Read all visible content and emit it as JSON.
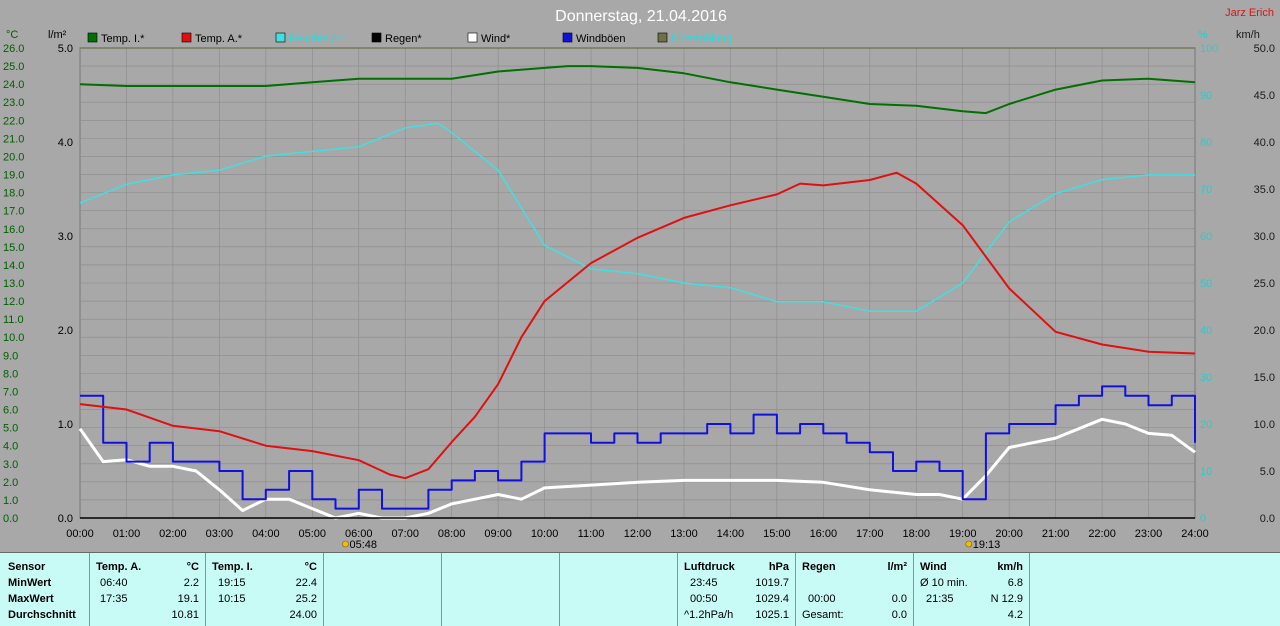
{
  "title": "Donnerstag, 21.04.2016",
  "author": "Jarz Erich",
  "colors": {
    "bg": "#a8a8a8",
    "grid": "#8a8a8a",
    "temp_in": "#007000",
    "temp_out": "#e01010",
    "humidity": "#40e0e0",
    "rain": "#000000",
    "wind": "#ffffff",
    "gusts": "#1010e0",
    "sunshine": "#707048"
  },
  "axes": {
    "celsius_unit": "°C",
    "rain_unit": "l/m²",
    "humidity_unit": "%",
    "wind_unit": "km/h",
    "celsius_ticks": [
      "0.0",
      "1.0",
      "2.0",
      "3.0",
      "4.0",
      "5.0",
      "6.0",
      "7.0",
      "8.0",
      "9.0",
      "10.0",
      "11.0",
      "12.0",
      "13.0",
      "14.0",
      "15.0",
      "16.0",
      "17.0",
      "18.0",
      "19.0",
      "20.0",
      "21.0",
      "22.0",
      "23.0",
      "24.0",
      "25.0",
      "26.0"
    ],
    "rain_ticks": [
      "0.0",
      "1.0",
      "2.0",
      "3.0",
      "4.0",
      "5.0"
    ],
    "humidity_ticks": [
      "0",
      "10",
      "20",
      "30",
      "40",
      "50",
      "60",
      "70",
      "80",
      "90",
      "100"
    ],
    "wind_ticks": [
      "0.0",
      "5.0",
      "10.0",
      "15.0",
      "20.0",
      "25.0",
      "30.0",
      "35.0",
      "40.0",
      "45.0",
      "50.0"
    ],
    "x_ticks": [
      "00:00",
      "01:00",
      "02:00",
      "03:00",
      "04:00",
      "05:00",
      "06:00",
      "07:00",
      "08:00",
      "09:00",
      "10:00",
      "11:00",
      "12:00",
      "13:00",
      "14:00",
      "15:00",
      "16:00",
      "17:00",
      "18:00",
      "19:00",
      "20:00",
      "21:00",
      "22:00",
      "23:00",
      "24:00"
    ],
    "sunrise": "05:48",
    "sunset": "19:13"
  },
  "legend": [
    {
      "label": "Temp. I.*",
      "color": "#007000"
    },
    {
      "label": "Temp. A.*",
      "color": "#e01010"
    },
    {
      "label": "Feuchte A.*",
      "color": "#40e0e0"
    },
    {
      "label": "Regen*",
      "color": "#000000"
    },
    {
      "label": "Wind*",
      "color": "#ffffff"
    },
    {
      "label": "Windböen",
      "color": "#1010e0"
    },
    {
      "label": "Einstrahlung",
      "color": "#707048"
    }
  ],
  "chart_data": {
    "type": "line",
    "title": "Donnerstag, 21.04.2016",
    "xlim": [
      0,
      24
    ],
    "ylim": [
      0,
      26
    ],
    "grid": true,
    "legend_position": "top",
    "series": [
      {
        "name": "Temp. I.*",
        "axis": "celsius",
        "x": [
          0,
          1,
          2,
          3,
          4,
          5,
          6,
          7,
          8,
          9,
          10,
          10.5,
          11,
          12,
          13,
          14,
          15,
          16,
          17,
          18,
          19,
          19.5,
          20,
          21,
          22,
          23,
          24
        ],
        "y": [
          24.0,
          23.9,
          23.9,
          23.9,
          23.9,
          24.1,
          24.3,
          24.3,
          24.3,
          24.7,
          24.9,
          25.0,
          25.0,
          24.9,
          24.6,
          24.1,
          23.7,
          23.3,
          22.9,
          22.8,
          22.5,
          22.4,
          22.9,
          23.7,
          24.2,
          24.3,
          24.1
        ]
      },
      {
        "name": "Temp. A.*",
        "axis": "celsius",
        "x": [
          0,
          1,
          2,
          3,
          4,
          5,
          6,
          6.67,
          7,
          7.5,
          8,
          8.5,
          9,
          9.5,
          10,
          11,
          12,
          13,
          14,
          15,
          15.5,
          16,
          17,
          17.58,
          18,
          19,
          20,
          21,
          22,
          23,
          24
        ],
        "y": [
          6.3,
          6.0,
          5.1,
          4.8,
          4.0,
          3.7,
          3.2,
          2.4,
          2.2,
          2.7,
          4.2,
          5.6,
          7.4,
          10.0,
          12.0,
          14.1,
          15.5,
          16.6,
          17.3,
          17.9,
          18.5,
          18.4,
          18.7,
          19.1,
          18.5,
          16.2,
          12.7,
          10.3,
          9.6,
          9.2,
          9.1
        ]
      },
      {
        "name": "Feuchte A.*",
        "axis": "humidity",
        "x": [
          0,
          1,
          2,
          3,
          4,
          5,
          6,
          7,
          7.7,
          8,
          9,
          10,
          11,
          12,
          13,
          14,
          15,
          16,
          17,
          18,
          19,
          20,
          21,
          22,
          23,
          24
        ],
        "y": [
          67,
          71,
          73,
          74,
          77,
          78,
          79,
          83,
          84,
          82,
          74,
          58,
          53,
          52,
          50,
          49,
          46,
          46,
          44,
          44,
          50,
          63,
          69,
          72,
          73,
          73
        ]
      },
      {
        "name": "Regen*",
        "axis": "rain",
        "x": [
          0,
          24
        ],
        "y": [
          0,
          0
        ]
      },
      {
        "name": "Wind*",
        "axis": "wind",
        "x": [
          0,
          0.5,
          1,
          1.5,
          2,
          2.5,
          3,
          3.5,
          4,
          4.5,
          5,
          5.5,
          6,
          6.5,
          7,
          7.5,
          8,
          8.5,
          9,
          9.5,
          10,
          11,
          12,
          13,
          14,
          15,
          16,
          17,
          18,
          18.5,
          19,
          19.5,
          20,
          21,
          21.5,
          22,
          22.5,
          23,
          23.5,
          24
        ],
        "y": [
          9.5,
          6.0,
          6.2,
          5.5,
          5.5,
          5.0,
          3.0,
          0.8,
          2.0,
          2.0,
          1.0,
          0.0,
          0.5,
          0.0,
          0.0,
          0.5,
          1.5,
          2.0,
          2.5,
          2.0,
          3.2,
          3.5,
          3.8,
          4.0,
          4.0,
          4.0,
          3.8,
          3.0,
          2.5,
          2.5,
          2.0,
          4.5,
          7.5,
          8.5,
          9.5,
          10.5,
          10.0,
          9.0,
          8.8,
          7.0
        ]
      },
      {
        "name": "Windböen",
        "axis": "wind",
        "x": [
          0,
          0.5,
          1,
          1.5,
          2,
          2.5,
          3,
          3.5,
          4,
          4.5,
          5,
          5.5,
          6,
          6.5,
          7,
          7.5,
          8,
          8.5,
          9,
          9.5,
          10,
          10.5,
          11,
          11.5,
          12,
          12.5,
          13,
          13.5,
          14,
          14.5,
          15,
          15.5,
          16,
          16.5,
          17,
          17.5,
          18,
          18.5,
          19,
          19.5,
          20,
          20.5,
          21,
          21.5,
          22,
          22.5,
          23,
          23.5,
          24
        ],
        "y": [
          13.0,
          8.0,
          6.0,
          8.0,
          6.0,
          6.0,
          5.0,
          2.0,
          3.0,
          5.0,
          2.0,
          1.0,
          3.0,
          1.0,
          1.0,
          3.0,
          4.0,
          5.0,
          4.0,
          6.0,
          9.0,
          9.0,
          8.0,
          9.0,
          8.0,
          9.0,
          9.0,
          10.0,
          9.0,
          11.0,
          9.0,
          10.0,
          9.0,
          8.0,
          7.0,
          5.0,
          6.0,
          5.0,
          2.0,
          9.0,
          10.0,
          10.0,
          12.0,
          13.0,
          14.0,
          13.0,
          12.0,
          13.0,
          8.0
        ]
      },
      {
        "name": "Einstrahlung",
        "axis": "rain",
        "x": [
          0,
          24
        ],
        "y": [
          5.0,
          5.0
        ]
      }
    ]
  },
  "table": {
    "sensor": {
      "title": "Sensor",
      "rows": [
        "MinWert",
        "MaxWert",
        "Durchschnitt"
      ]
    },
    "temp_a": {
      "title": "Temp. A.",
      "unit": "°C",
      "rows": [
        [
          "06:40",
          "2.2"
        ],
        [
          "17:35",
          "19.1"
        ],
        [
          "",
          "10.81"
        ]
      ]
    },
    "temp_i": {
      "title": "Temp. I.",
      "unit": "°C",
      "rows": [
        [
          "19:15",
          "22.4"
        ],
        [
          "10:15",
          "25.2"
        ],
        [
          "",
          "24.00"
        ]
      ]
    },
    "pressure": {
      "title": "Luftdruck",
      "unit": "hPa",
      "rows": [
        [
          "23:45",
          "1019.7"
        ],
        [
          "00:50",
          "1029.4"
        ],
        [
          "^1.2hPa/h",
          "1025.1"
        ]
      ]
    },
    "rain": {
      "title": "Regen",
      "unit": "l/m²",
      "rows": [
        [
          "",
          ""
        ],
        [
          "00:00",
          "0.0"
        ],
        [
          "Gesamt:",
          "0.0"
        ]
      ]
    },
    "wind": {
      "title": "Wind",
      "unit": "km/h",
      "rows": [
        [
          "Ø 10 min.",
          "6.8"
        ],
        [
          "21:35",
          "N 12.9"
        ],
        [
          "",
          "4.2"
        ]
      ]
    }
  }
}
